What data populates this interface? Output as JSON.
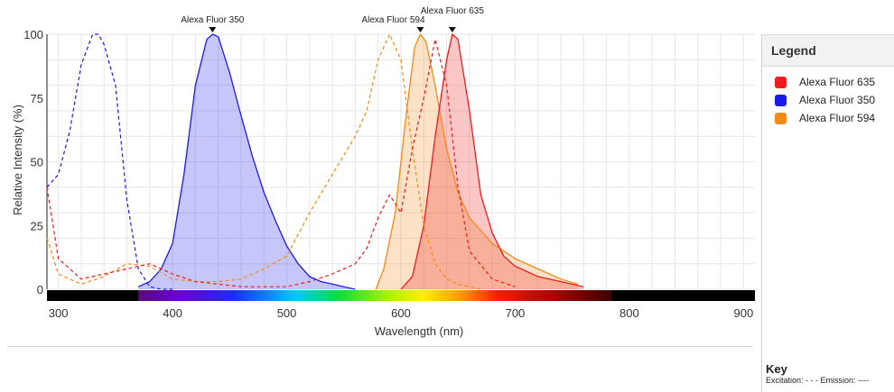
{
  "chart_data": {
    "type": "area",
    "xlabel": "Wavelength (nm)",
    "ylabel": "Relative Intensity (%)",
    "xlim": [
      290,
      910
    ],
    "ylim": [
      0,
      100
    ],
    "x_ticks": [
      300,
      400,
      500,
      600,
      700,
      800,
      900
    ],
    "y_ticks": [
      0,
      25,
      50,
      75,
      100
    ],
    "grid": true,
    "legend_position": "right",
    "spectrum_bar": {
      "start_nm": 370,
      "end_nm": 785
    },
    "series": [
      {
        "name": "Alexa Fluor 635",
        "color": "#ee1c1c",
        "peak_label": "Alexa Fluor 635",
        "excitation": {
          "x": [
            290,
            300,
            320,
            340,
            360,
            380,
            400,
            420,
            440,
            460,
            480,
            500,
            520,
            540,
            560,
            570,
            580,
            590,
            600,
            610,
            620,
            630,
            640,
            650,
            660,
            680,
            700
          ],
          "y": [
            40,
            12,
            4,
            6,
            8,
            10,
            6,
            3,
            2,
            1,
            1,
            1,
            3,
            6,
            10,
            16,
            28,
            37,
            30,
            55,
            75,
            98,
            80,
            40,
            15,
            4,
            1
          ]
        },
        "emission": {
          "x": [
            600,
            610,
            620,
            630,
            640,
            645,
            650,
            660,
            670,
            680,
            690,
            700,
            720,
            740,
            760
          ],
          "y": [
            0,
            5,
            25,
            60,
            90,
            100,
            98,
            70,
            37,
            22,
            13,
            9,
            5,
            3,
            1
          ]
        }
      },
      {
        "name": "Alexa Fluor 350",
        "color": "#1a1aee",
        "peak_label": "Alexa Fluor 350",
        "excitation": {
          "x": [
            290,
            300,
            310,
            320,
            330,
            335,
            340,
            350,
            360,
            370,
            380,
            390,
            400
          ],
          "y": [
            40,
            45,
            62,
            88,
            100,
            100,
            96,
            80,
            35,
            8,
            1,
            0,
            0
          ]
        },
        "emission": {
          "x": [
            370,
            380,
            390,
            400,
            410,
            420,
            430,
            435,
            440,
            450,
            460,
            470,
            480,
            490,
            500,
            510,
            520,
            530,
            540,
            550,
            560
          ],
          "y": [
            1,
            3,
            8,
            18,
            45,
            80,
            98,
            100,
            99,
            85,
            68,
            52,
            38,
            27,
            17,
            10,
            5,
            3,
            2,
            1,
            0
          ]
        }
      },
      {
        "name": "Alexa Fluor 594",
        "color": "#f28a1a",
        "peak_label": "Alexa Fluor 594",
        "excitation": {
          "x": [
            290,
            300,
            320,
            340,
            360,
            380,
            400,
            420,
            440,
            460,
            480,
            500,
            520,
            540,
            560,
            570,
            580,
            590,
            600,
            610,
            620,
            630,
            640,
            650,
            660,
            670
          ],
          "y": [
            20,
            6,
            2,
            5,
            10,
            9,
            4,
            3,
            3,
            4,
            8,
            13,
            30,
            45,
            60,
            70,
            90,
            100,
            90,
            55,
            25,
            10,
            4,
            2,
            1,
            0
          ]
        },
        "emission": {
          "x": [
            578,
            585,
            595,
            605,
            612,
            617,
            622,
            630,
            640,
            650,
            660,
            680,
            700,
            720,
            740,
            755
          ],
          "y": [
            0,
            8,
            30,
            70,
            95,
            100,
            97,
            80,
            55,
            38,
            28,
            18,
            12,
            8,
            4,
            2
          ]
        }
      }
    ]
  },
  "legend": {
    "title": "Legend",
    "items": [
      "Alexa Fluor 635",
      "Alexa Fluor 350",
      "Alexa Fluor 594"
    ]
  },
  "key": {
    "title": "Key",
    "line": "Excitation: - - -   Emission: ----"
  }
}
